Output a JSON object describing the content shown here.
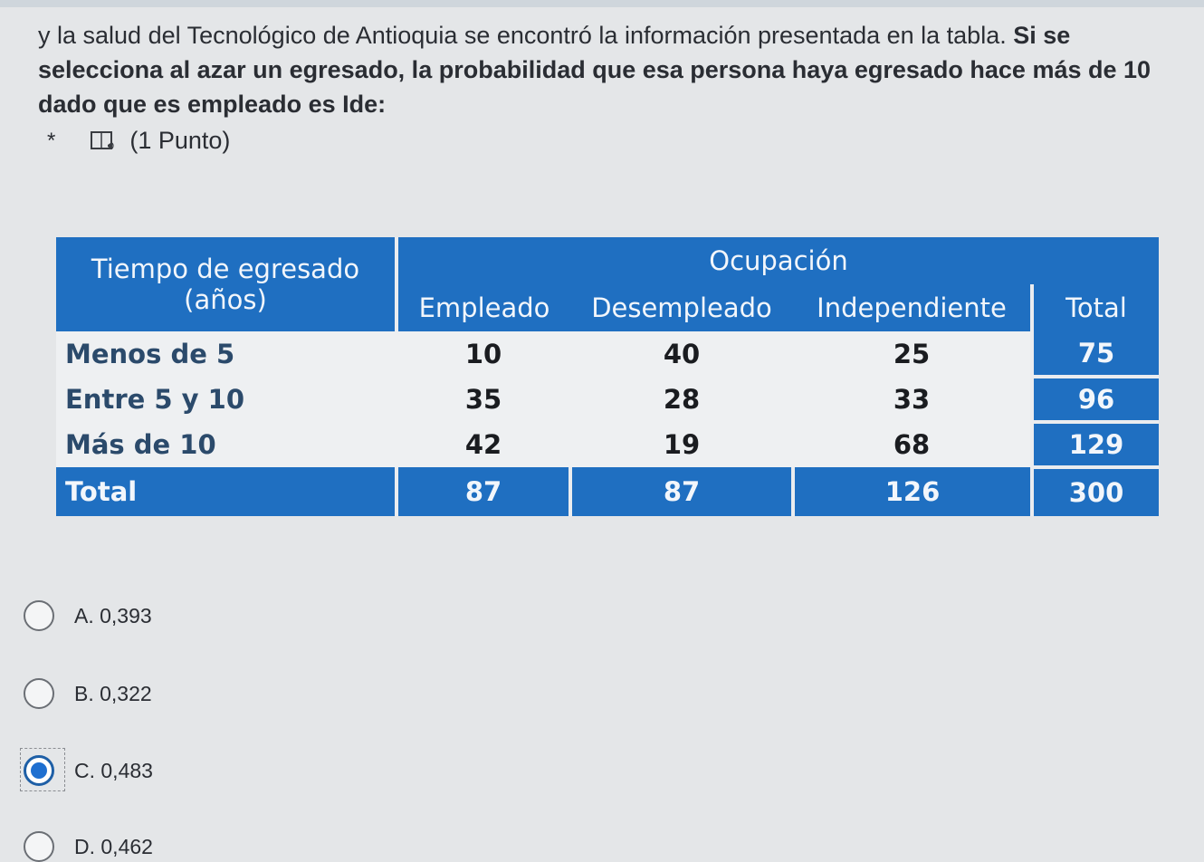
{
  "question": {
    "line1_normal": "y la salud del Tecnológico de Antioquia se encontró la información presentada en la tabla. ",
    "line1_bold": "Si",
    "line2_bold": "se selecciona al azar un egresado, la probabilidad que esa persona haya egresado hace",
    "line3_bold": "más de 10 dado que es empleado es Ide:",
    "required_marker": "*",
    "points": "(1 Punto)",
    "reader_icon": "immersive-reader-icon"
  },
  "table": {
    "row_header": "Tiempo de egresado (años)",
    "group_header": "Ocupación",
    "columns": [
      "Empleado",
      "Desempleado",
      "Independiente",
      "Total"
    ],
    "rows": [
      {
        "label": "Menos de 5",
        "values": [
          "10",
          "40",
          "25",
          "75"
        ]
      },
      {
        "label": "Entre 5 y 10",
        "values": [
          "35",
          "28",
          "33",
          "96"
        ]
      },
      {
        "label": "Más de 10",
        "values": [
          "42",
          "19",
          "68",
          "129"
        ]
      }
    ],
    "total_row": {
      "label": "Total",
      "values": [
        "87",
        "87",
        "126",
        "300"
      ]
    },
    "colors": {
      "header_blue": "#1f6fc1",
      "cell_bg": "#eef0f2"
    }
  },
  "options": [
    {
      "label": "A. 0,393",
      "selected": false
    },
    {
      "label": "B. 0,322",
      "selected": false
    },
    {
      "label": "C. 0,483",
      "selected": true
    },
    {
      "label": "D. 0,462",
      "selected": false
    }
  ],
  "accent_color": "#1e6fd0"
}
